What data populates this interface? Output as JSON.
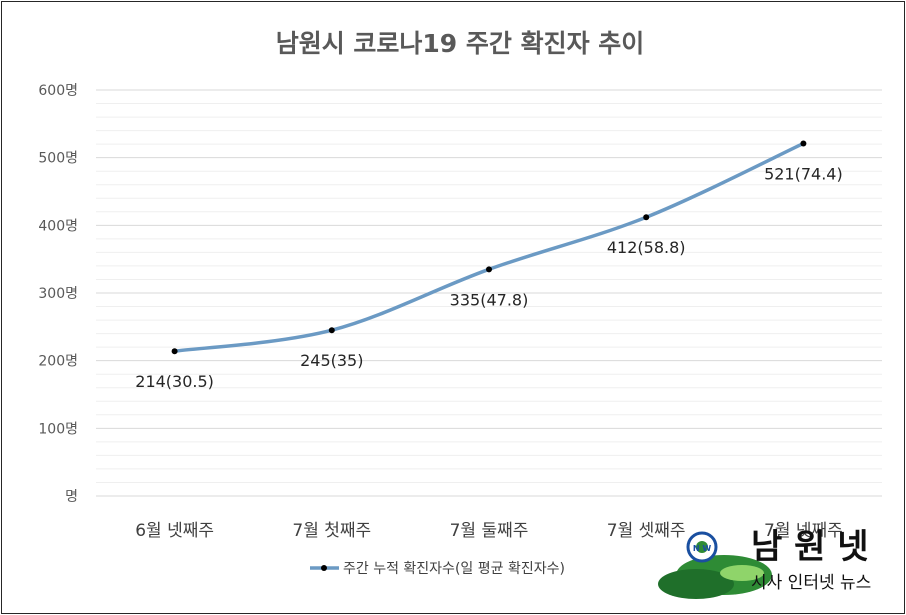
{
  "chart_data": {
    "type": "line",
    "title": "남원시 코로나19 주간 확진자 추이",
    "categories": [
      "6월 넷째주",
      "7월 첫째주",
      "7월 둘째주",
      "7월 셋째주",
      "7월 넷째주"
    ],
    "series": [
      {
        "name": "주간 누적 확진자수(일 평균 확진자수)",
        "values": [
          214,
          245,
          335,
          412,
          521
        ],
        "labels": [
          "214(30.5)",
          "245(35)",
          "335(47.8)",
          "412(58.8)",
          "521(74.4)"
        ],
        "color": "#6b9ac4"
      }
    ],
    "yticks": [
      "명",
      "100명",
      "200명",
      "300명",
      "400명",
      "500명",
      "600명"
    ],
    "ylim": [
      0,
      600
    ],
    "grid": true,
    "legend": "bottom"
  },
  "logo": {
    "title": "남 원 넷",
    "subtitle": "시사 인터넷 뉴스",
    "badge": "N W"
  }
}
